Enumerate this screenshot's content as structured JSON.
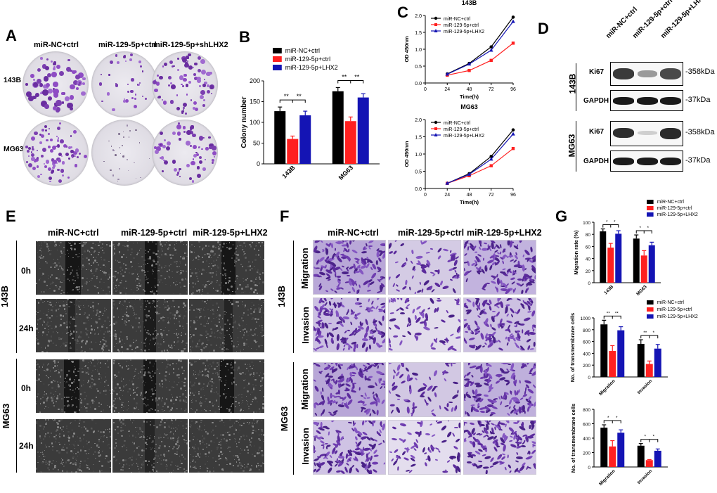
{
  "panels": {
    "A": {
      "letter": "A",
      "columns": [
        "miR-NC+ctrl",
        "miR-129-5p+ctrl",
        "miR-129-5p+shLHX2"
      ],
      "rows": [
        "143B",
        "MG63"
      ]
    },
    "B": {
      "letter": "B",
      "chart_data": {
        "type": "bar",
        "categories": [
          "143B",
          "MG63"
        ],
        "series": [
          {
            "name": "miR-NC+ctrl",
            "values": [
              127,
              175
            ],
            "errors": [
              10,
              9
            ],
            "color": "#000000"
          },
          {
            "name": "miR-129-5p+ctrl",
            "values": [
              60,
              103
            ],
            "errors": [
              7,
              10
            ],
            "color": "#ff2020"
          },
          {
            "name": "miR-129-5p+LHX2",
            "values": [
              117,
              160
            ],
            "errors": [
              10,
              9
            ],
            "color": "#1414b4"
          }
        ],
        "ylabel": "Colony number",
        "ylim": [
          0,
          200
        ],
        "yticks": [
          0,
          50,
          100,
          150,
          200
        ],
        "significance": [
          "**",
          "**",
          "**",
          "**"
        ],
        "legend": "top"
      }
    },
    "C": {
      "letter": "C",
      "charts": [
        {
          "type": "line",
          "title": "143B",
          "x": [
            0,
            24,
            48,
            72,
            96
          ],
          "xlabel": "Time(h)",
          "ylabel": "OD 450nm",
          "ylim": [
            0.0,
            2.0
          ],
          "yticks": [
            "0.0",
            "0.5",
            "1.0",
            "1.5",
            "2.0"
          ],
          "xticks": [
            "0",
            "24",
            "48",
            "72",
            "96"
          ],
          "series": [
            {
              "name": "miR-NC+ctrl",
              "color": "#000000",
              "marker": "circle",
              "points": [
                [
                  24,
                  0.27
                ],
                [
                  48,
                  0.58
                ],
                [
                  72,
                  1.07
                ],
                [
                  96,
                  1.95
                ]
              ]
            },
            {
              "name": "miR-129-5p+ctrl",
              "color": "#ff2020",
              "marker": "square",
              "points": [
                [
                  24,
                  0.23
                ],
                [
                  48,
                  0.37
                ],
                [
                  72,
                  0.67
                ],
                [
                  96,
                  1.18
                ]
              ]
            },
            {
              "name": "miR-129-5p+LHX2",
              "color": "#1414b4",
              "marker": "triangle",
              "points": [
                [
                  24,
                  0.26
                ],
                [
                  48,
                  0.56
                ],
                [
                  72,
                  0.97
                ],
                [
                  96,
                  1.82
                ]
              ]
            }
          ],
          "legend": "top-left"
        },
        {
          "type": "line",
          "title": "MG63",
          "x": [
            0,
            24,
            48,
            72,
            96
          ],
          "xlabel": "Time(h)",
          "ylabel": "OD 450nm",
          "ylim": [
            0.0,
            2.0
          ],
          "yticks": [
            "0.0",
            "0.5",
            "1.0",
            "1.5",
            "2.0"
          ],
          "xticks": [
            "0",
            "24",
            "48",
            "72",
            "96"
          ],
          "series": [
            {
              "name": "miR-NC+ctrl",
              "color": "#000000",
              "marker": "circle",
              "points": [
                [
                  24,
                  0.15
                ],
                [
                  48,
                  0.43
                ],
                [
                  72,
                  0.93
                ],
                [
                  96,
                  1.7
                ]
              ]
            },
            {
              "name": "miR-129-5p+ctrl",
              "color": "#ff2020",
              "marker": "square",
              "points": [
                [
                  24,
                  0.15
                ],
                [
                  48,
                  0.37
                ],
                [
                  72,
                  0.66
                ],
                [
                  96,
                  1.16
                ]
              ]
            },
            {
              "name": "miR-129-5p+LHX2",
              "color": "#1414b4",
              "marker": "triangle",
              "points": [
                [
                  24,
                  0.15
                ],
                [
                  48,
                  0.41
                ],
                [
                  72,
                  0.85
                ],
                [
                  96,
                  1.58
                ]
              ]
            }
          ],
          "legend": "top-left"
        }
      ]
    },
    "D": {
      "letter": "D",
      "columns": [
        "miR-NC+ctrl",
        "miR-129-5p+ctrl",
        "miR-129-5p+LHX2"
      ],
      "groups": [
        {
          "cell": "143B",
          "rows": [
            {
              "protein": "Ki67",
              "kda": "-358kDa"
            },
            {
              "protein": "GAPDH",
              "kda": "-37kDa"
            }
          ]
        },
        {
          "cell": "MG63",
          "rows": [
            {
              "protein": "Ki67",
              "kda": "-358kDa"
            },
            {
              "protein": "GAPDH",
              "kda": "-37kDa"
            }
          ]
        }
      ]
    },
    "E": {
      "letter": "E",
      "columns": [
        "miR-NC+ctrl",
        "miR-129-5p+ctrl",
        "miR-129-5p+LHX2"
      ],
      "cells": [
        "143B",
        "MG63"
      ],
      "times": [
        "0h",
        "24h"
      ]
    },
    "F": {
      "letter": "F",
      "columns": [
        "miR-NC+ctrl",
        "miR-129-5p+ctrl",
        "miR-129-5p+LHX2"
      ],
      "cells": [
        "143B",
        "MG63"
      ],
      "assays": [
        "Migration",
        "Invasion"
      ]
    },
    "G": {
      "letter": "G",
      "charts": [
        {
          "type": "bar",
          "categories": [
            "143B",
            "MG63"
          ],
          "ylabel": "Migration rate (%)",
          "ylim": [
            0,
            100
          ],
          "yticks": [
            0,
            20,
            40,
            60,
            80,
            100
          ],
          "series": [
            {
              "name": "miR-NC+ctrl",
              "values": [
                85,
                73
              ],
              "errors": [
                4,
                6
              ],
              "color": "#000000"
            },
            {
              "name": "miR-129-5p+ctrl",
              "values": [
                58,
                45
              ],
              "errors": [
                7,
                8
              ],
              "color": "#ff2020"
            },
            {
              "name": "miR-129-5p+LHX2",
              "values": [
                81,
                62
              ],
              "errors": [
                5,
                5
              ],
              "color": "#1414b4"
            }
          ],
          "significance": [
            "*",
            "*",
            "*",
            "*"
          ],
          "legend": "top-right"
        },
        {
          "type": "bar",
          "categories": [
            "Migration",
            "Invasion"
          ],
          "ylabel": "No. of transmembrane cells",
          "ylim": [
            0,
            1000
          ],
          "yticks": [
            0,
            200,
            400,
            600,
            800,
            1000
          ],
          "series": [
            {
              "name": "miR-NC+ctrl",
              "values": [
                890,
                560
              ],
              "errors": [
                70,
                70
              ],
              "color": "#000000"
            },
            {
              "name": "miR-129-5p+ctrl",
              "values": [
                440,
                220
              ],
              "errors": [
                90,
                50
              ],
              "color": "#ff2020"
            },
            {
              "name": "miR-129-5p+LHX2",
              "values": [
                790,
                480
              ],
              "errors": [
                60,
                70
              ],
              "color": "#1414b4"
            }
          ],
          "significance": [
            "**",
            "**",
            "**",
            "*"
          ],
          "legend": "top-right"
        },
        {
          "type": "bar",
          "categories": [
            "Migration",
            "Invasion"
          ],
          "ylabel": "No. of transmembrane cells",
          "ylim": [
            0,
            800
          ],
          "yticks": [
            0,
            200,
            400,
            600,
            800
          ],
          "series": [
            {
              "name": "miR-NC+ctrl",
              "values": [
                545,
                295
              ],
              "errors": [
                40,
                30
              ],
              "color": "#000000"
            },
            {
              "name": "miR-129-5p+ctrl",
              "values": [
                285,
                95
              ],
              "errors": [
                80,
                8
              ],
              "color": "#ff2020"
            },
            {
              "name": "miR-129-5p+LHX2",
              "values": [
                475,
                225
              ],
              "errors": [
                40,
                25
              ],
              "color": "#1414b4"
            }
          ],
          "significance": [
            "*",
            "*",
            "*",
            "*",
            "*"
          ]
        }
      ]
    }
  }
}
